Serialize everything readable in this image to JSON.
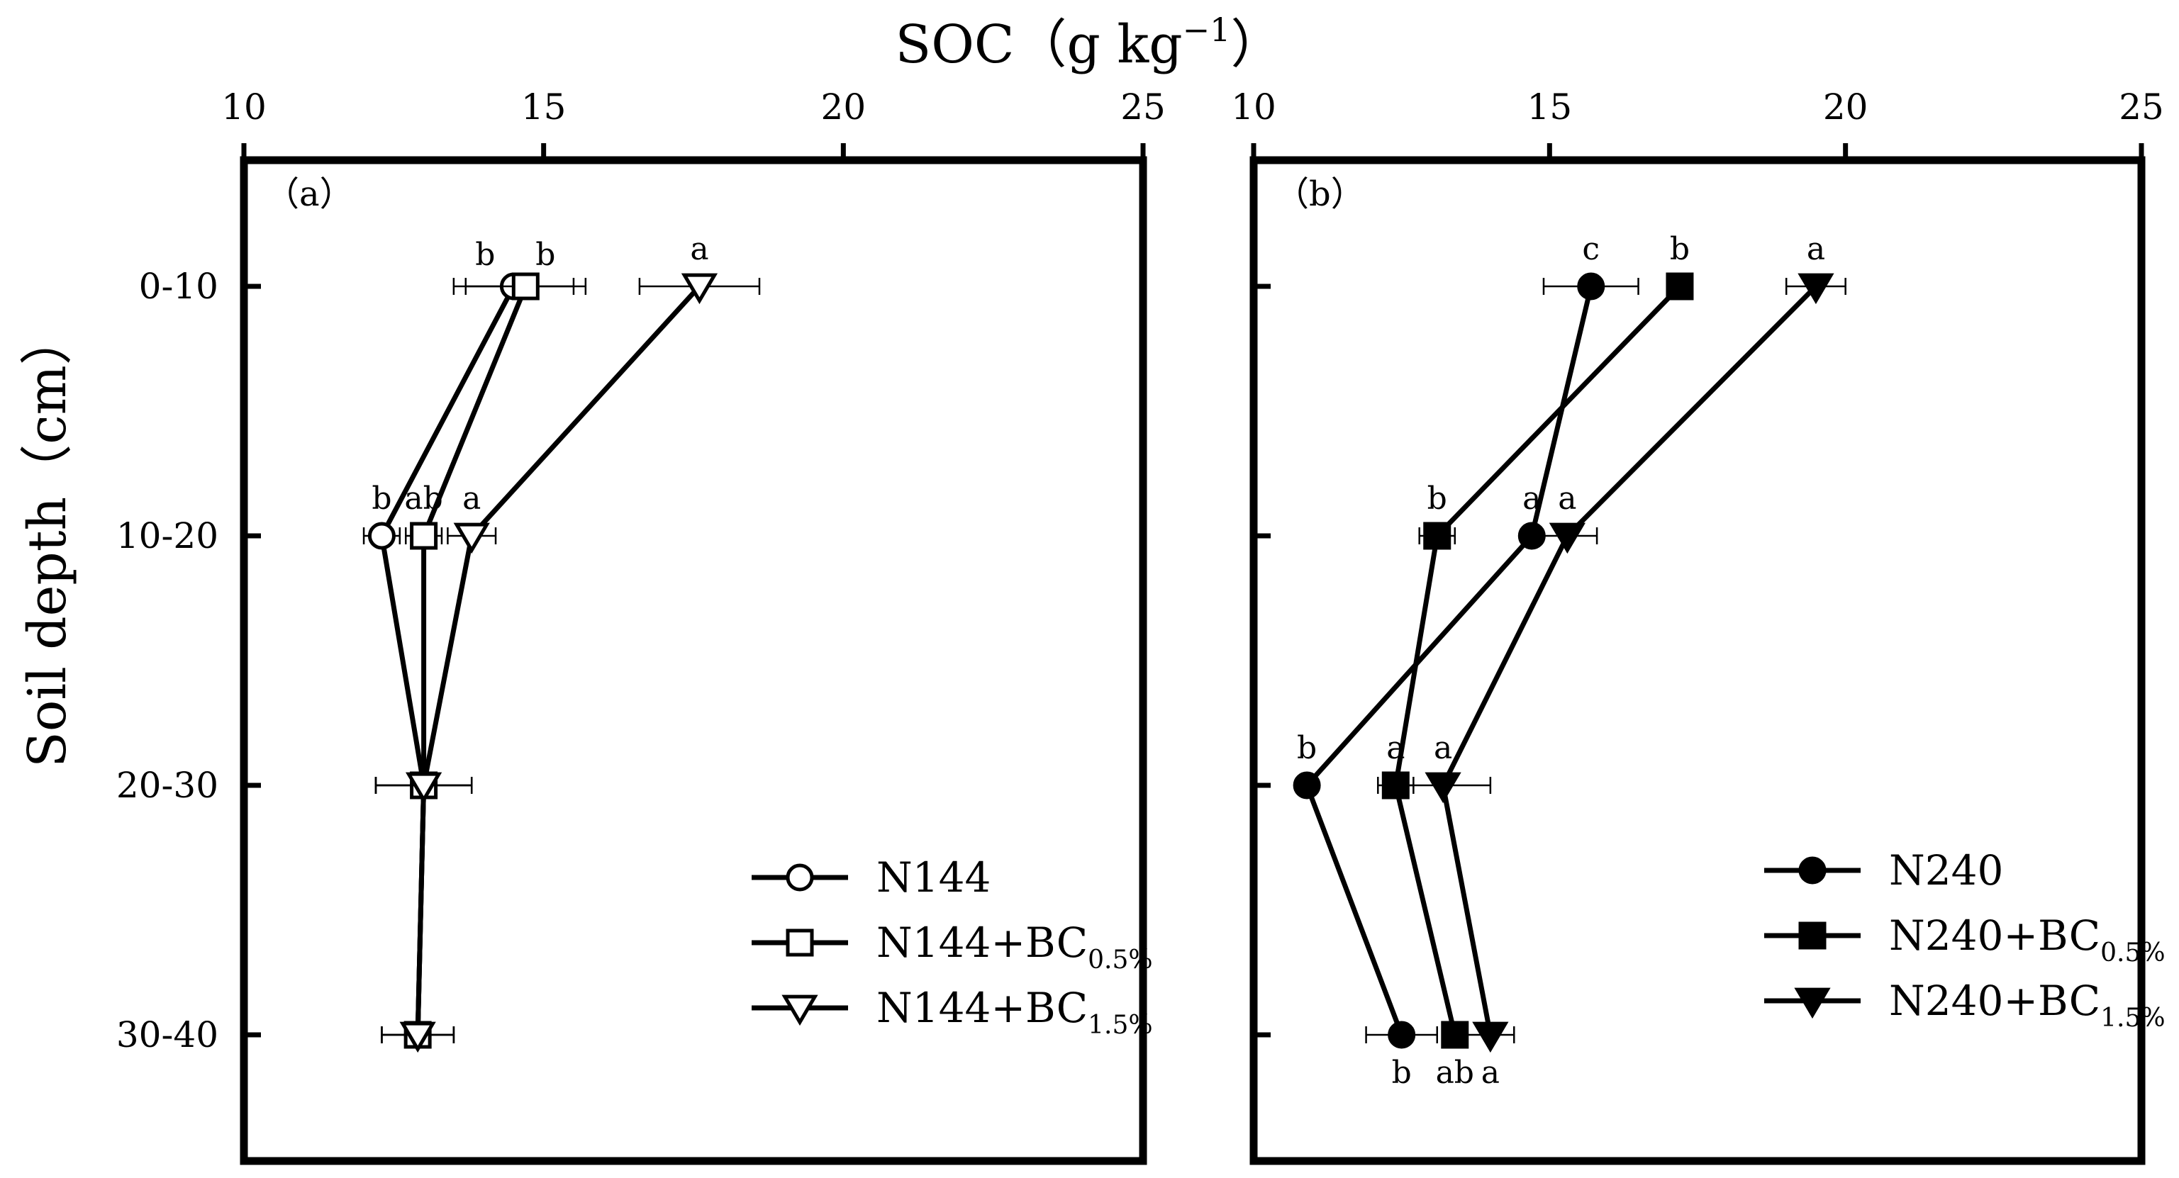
{
  "x_axis": {
    "label_main": "SOC（g kg",
    "label_sup": "−1",
    "label_end": "）"
  },
  "y_axis": {
    "label": "Soil depth（cm）"
  },
  "chart_data": [
    {
      "type": "line",
      "panel_label": "（a）",
      "xlim": [
        10,
        25
      ],
      "xticks": [
        "10",
        "15",
        "20",
        "25"
      ],
      "categories": [
        "0-10",
        "10-20",
        "20-30",
        "30-40"
      ],
      "legend_position": "bottom-right",
      "series": [
        {
          "name_main": "N144",
          "name_sub": "",
          "marker": "circle",
          "fill": "open",
          "values": [
            14.5,
            12.3,
            13.0,
            12.9
          ],
          "errors": [
            1.0,
            0.3,
            0.8,
            0.6
          ],
          "letters": [
            "b",
            "b",
            "",
            ""
          ],
          "letter_side": [
            "left",
            "above",
            "",
            ""
          ]
        },
        {
          "name_main": "N144+BC",
          "name_sub": "0.5%",
          "marker": "square",
          "fill": "open",
          "values": [
            14.7,
            13.0,
            13.0,
            12.9
          ],
          "errors": [
            1.0,
            0.3,
            0.8,
            0.6
          ],
          "letters": [
            "b",
            "ab",
            "",
            ""
          ],
          "letter_side": [
            "right",
            "above",
            "",
            ""
          ]
        },
        {
          "name_main": "N144+BC",
          "name_sub": "1.5%",
          "marker": "triangle-down",
          "fill": "open",
          "values": [
            17.6,
            13.8,
            13.0,
            12.9
          ],
          "errors": [
            1.0,
            0.4,
            0.8,
            0.6
          ],
          "letters": [
            "a",
            "a",
            "",
            ""
          ],
          "letter_side": [
            "above",
            "above",
            "",
            ""
          ]
        }
      ]
    },
    {
      "type": "line",
      "panel_label": "（b）",
      "xlim": [
        10,
        25
      ],
      "xticks": [
        "10",
        "15",
        "20",
        "25"
      ],
      "categories": [
        "0-10",
        "10-20",
        "20-30",
        "30-40"
      ],
      "legend_position": "bottom-right",
      "series": [
        {
          "name_main": "N240",
          "name_sub": "",
          "marker": "circle",
          "fill": "filled",
          "values": [
            15.7,
            14.7,
            10.9,
            12.5
          ],
          "errors": [
            0.8,
            0.0,
            0.0,
            0.6
          ],
          "letters": [
            "c",
            "a",
            "b",
            "b"
          ],
          "letter_side": [
            "above",
            "above",
            "above",
            "below"
          ]
        },
        {
          "name_main": "N240+BC",
          "name_sub": "0.5%",
          "marker": "square",
          "fill": "filled",
          "values": [
            17.2,
            13.1,
            12.4,
            13.4
          ],
          "errors": [
            0.0,
            0.3,
            0.3,
            0.0
          ],
          "letters": [
            "b",
            "b",
            "a",
            "ab"
          ],
          "letter_side": [
            "above",
            "above",
            "above",
            "below"
          ]
        },
        {
          "name_main": "N240+BC",
          "name_sub": "1.5%",
          "marker": "triangle-down",
          "fill": "filled",
          "values": [
            19.5,
            15.3,
            13.2,
            14.0
          ],
          "errors": [
            0.5,
            0.5,
            0.8,
            0.4
          ],
          "letters": [
            "a",
            "a",
            "a",
            "a"
          ],
          "letter_side": [
            "above",
            "above",
            "above",
            "below"
          ]
        }
      ]
    }
  ]
}
